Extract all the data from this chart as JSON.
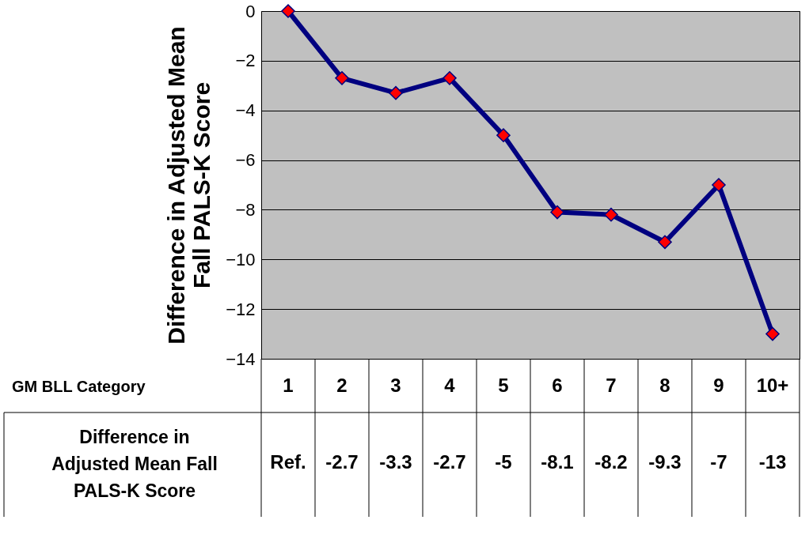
{
  "chart_data": {
    "type": "line",
    "categories": [
      "1",
      "2",
      "3",
      "4",
      "5",
      "6",
      "7",
      "8",
      "9",
      "10+"
    ],
    "series": [
      {
        "color": "#000080",
        "values": [
          0,
          -2.7,
          -3.3,
          -2.7,
          -5,
          -8.1,
          -8.2,
          -9.3,
          -7,
          -13
        ],
        "value_labels": [
          "Ref.",
          "-2.7",
          "-3.3",
          "-2.7",
          "-5",
          "-8.1",
          "-8.2",
          "-9.3",
          "-7",
          "-13"
        ]
      }
    ],
    "annotations": [
      "GM BLL Category"
    ],
    "ylabel": "Difference in Adjusted Mean Fall PALS-K Score",
    "ylim": [
      -14,
      0
    ],
    "yticks": [
      0,
      -2,
      -4,
      -6,
      -8,
      -10,
      -12,
      -14
    ],
    "grid": "y",
    "marker": "diamond",
    "line_style": "solid"
  }
}
